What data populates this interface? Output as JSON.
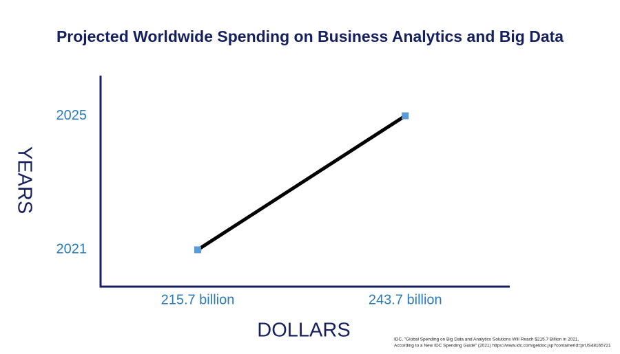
{
  "chart_data": {
    "type": "line",
    "title": "Projected Worldwide Spending on Business Analytics and Big Data",
    "x_label": "DOLLARS",
    "y_label": "YEARS",
    "x": [
      215.7,
      243.7
    ],
    "values": [
      2021,
      2025
    ],
    "color": "#000000",
    "marker_color": "#5b9bd5",
    "xlim": [
      202.6,
      257.8
    ],
    "xticks": [
      {
        "value": 215.7,
        "label": "215.7 billion"
      },
      {
        "value": 243.7,
        "label": "243.7 billion"
      }
    ],
    "ylim": [
      2019.9,
      2026.2
    ],
    "yticks": [
      2021,
      2025
    ],
    "grid": false,
    "source": [
      "IDC, \"Global Spending on Big Data and Analytics Solutions Will Reach $215.7 Billion in 2021,",
      "According to a New IDC Spending Guide\" (2021) https://www.idc.com/getdoc.jsp?containerId=prUS48165721"
    ]
  }
}
